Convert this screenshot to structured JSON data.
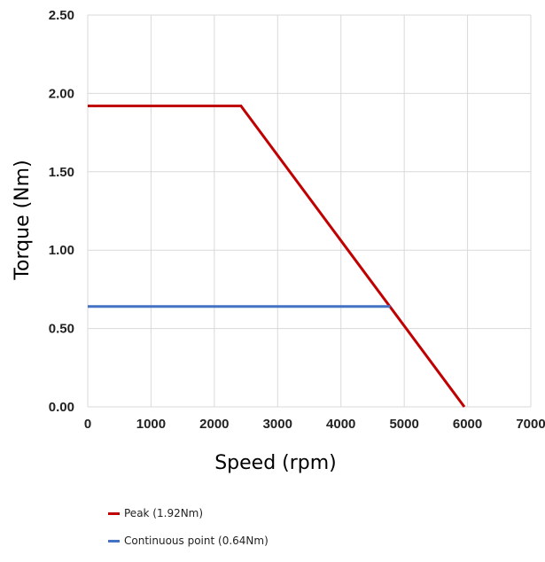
{
  "chart_data": {
    "type": "line",
    "xlabel": "Speed (rpm)",
    "ylabel": "Torque (Nm)",
    "xlim": [
      0,
      7000
    ],
    "ylim": [
      0,
      2.5
    ],
    "x_ticks": [
      "0",
      "1000",
      "2000",
      "3000",
      "4000",
      "5000",
      "6000",
      "7000"
    ],
    "y_ticks": [
      "0.00",
      "0.50",
      "1.00",
      "1.50",
      "2.00",
      "2.50"
    ],
    "x_tick_values": [
      0,
      1000,
      2000,
      3000,
      4000,
      5000,
      6000,
      7000
    ],
    "y_tick_values": [
      0,
      0.5,
      1.0,
      1.5,
      2.0,
      2.5
    ],
    "grid": true,
    "legend_position": "bottom-left",
    "series": [
      {
        "name": "Peak (1.92Nm)",
        "color": "#c00000",
        "points": [
          [
            0,
            1.92
          ],
          [
            2420,
            1.92
          ],
          [
            5950,
            0.0
          ]
        ]
      },
      {
        "name": "Continuous point (0.64Nm)",
        "color": "#4472c4",
        "points": [
          [
            0,
            0.64
          ],
          [
            4780,
            0.64
          ]
        ]
      }
    ]
  }
}
